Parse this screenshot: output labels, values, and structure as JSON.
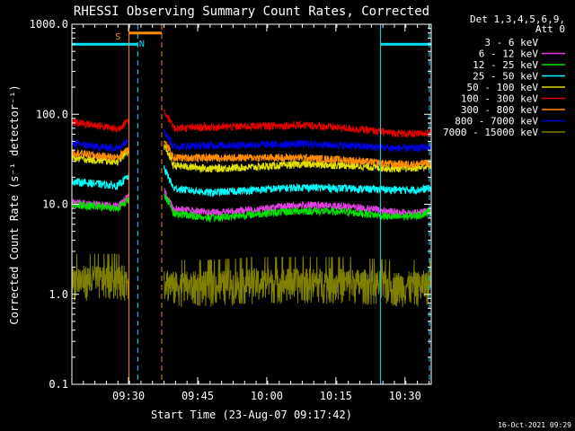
{
  "chart_data": {
    "type": "line",
    "title": "RHESSI Observing Summary Count Rates, Corrected",
    "xlabel": "Start Time (23-Aug-07 09:17:42)",
    "ylabel": "Corrected Count Rate (s⁻¹ detector⁻¹)",
    "y_scale": "log",
    "ylim": [
      0.1,
      1000
    ],
    "xlim_minutes": [
      0,
      78
    ],
    "x_ticks": [
      {
        "m": 12.3,
        "label": "09:30"
      },
      {
        "m": 27.3,
        "label": "09:45"
      },
      {
        "m": 42.3,
        "label": "10:00"
      },
      {
        "m": 57.3,
        "label": "10:15"
      },
      {
        "m": 72.3,
        "label": "10:30"
      },
      {
        "m": 87.3,
        "label": "10:45"
      }
    ],
    "y_ticks": [
      {
        "v": 0.1,
        "label": "0.1"
      },
      {
        "v": 1,
        "label": "1.0"
      },
      {
        "v": 10,
        "label": "10.0"
      },
      {
        "v": 100,
        "label": "100.0"
      },
      {
        "v": 1000,
        "label": "1000.0"
      }
    ],
    "legend_header": [
      "Det 1,3,4,5,6,9,",
      "Att 0"
    ],
    "gap_start_m": 12.4,
    "gap_end_m": 20.0,
    "series": [
      {
        "name": "3 - 6 keV",
        "color": "#000000",
        "x": [
          0,
          5,
          10,
          12,
          20,
          22,
          30,
          40,
          50,
          60,
          70,
          75,
          80,
          85,
          90
        ],
        "y": [
          2.5,
          2.5,
          2.8,
          3.5,
          4.0,
          2.8,
          2.3,
          2.5,
          2.5,
          2.6,
          2.2,
          2.2,
          2.6,
          3.2,
          3.6
        ]
      },
      {
        "name": "6 - 12 keV",
        "color": "#e040e0",
        "x": [
          0,
          5,
          10,
          12,
          20,
          22,
          30,
          40,
          50,
          60,
          70,
          75,
          80,
          85,
          90
        ],
        "y": [
          10.5,
          10,
          9.5,
          12,
          14,
          9,
          8.0,
          8.8,
          9.8,
          9.5,
          8.2,
          8.0,
          8.8,
          11,
          12.5
        ]
      },
      {
        "name": "12 - 25 keV",
        "color": "#00e000",
        "x": [
          0,
          5,
          10,
          12,
          20,
          22,
          30,
          40,
          50,
          60,
          70,
          75,
          80,
          85,
          90
        ],
        "y": [
          10,
          9.5,
          9,
          11,
          13,
          8,
          7.0,
          7.8,
          8.5,
          8.2,
          7.2,
          7.5,
          9.0,
          12,
          14
        ]
      },
      {
        "name": "25 - 50 keV",
        "color": "#00ffff",
        "x": [
          0,
          5,
          10,
          12,
          20,
          22,
          30,
          40,
          50,
          60,
          70,
          75,
          80,
          85,
          90
        ],
        "y": [
          18,
          17,
          16,
          20,
          25,
          15,
          13.5,
          14.5,
          15.5,
          15,
          14.5,
          14.5,
          15.5,
          18,
          21
        ]
      },
      {
        "name": "50 - 100 keV",
        "color": "#e0e000",
        "x": [
          0,
          5,
          10,
          12,
          20,
          22,
          30,
          40,
          50,
          60,
          70,
          75,
          80,
          85,
          90
        ],
        "y": [
          33,
          31,
          30,
          38,
          45,
          27,
          25,
          26,
          28,
          27,
          25,
          25.5,
          27,
          32,
          36
        ]
      },
      {
        "name": "100 - 300 keV",
        "color": "#e00000",
        "x": [
          0,
          5,
          10,
          12,
          20,
          22,
          30,
          40,
          50,
          60,
          70,
          75,
          80,
          85,
          90
        ],
        "y": [
          82,
          76,
          68,
          85,
          110,
          70,
          72,
          74,
          76,
          70,
          62,
          60,
          64,
          72,
          80
        ]
      },
      {
        "name": "300 - 800 keV",
        "color": "#ff8c00",
        "x": [
          0,
          5,
          10,
          12,
          20,
          22,
          30,
          40,
          50,
          60,
          70,
          75,
          80,
          85,
          90
        ],
        "y": [
          38,
          35,
          33,
          42,
          50,
          33,
          33,
          33,
          33,
          31,
          28,
          28,
          30,
          35,
          40
        ]
      },
      {
        "name": "800 - 7000 keV",
        "color": "#0000e0",
        "x": [
          0,
          5,
          10,
          12,
          20,
          22,
          30,
          40,
          50,
          60,
          70,
          75,
          80,
          85,
          90
        ],
        "y": [
          48,
          44,
          42,
          52,
          65,
          44,
          45,
          46,
          47,
          45,
          42,
          42,
          45,
          50,
          54
        ]
      },
      {
        "name": "7000 - 15000 keV",
        "color": "#808000",
        "x": [
          0,
          5,
          10,
          12,
          20,
          22,
          30,
          40,
          50,
          60,
          70,
          75,
          80,
          85,
          90
        ],
        "y": [
          1.4,
          1.4,
          1.4,
          1.4,
          1.4,
          1.2,
          1.2,
          1.3,
          1.3,
          1.3,
          1.2,
          1.2,
          1.3,
          1.4,
          1.6
        ]
      }
    ],
    "night_bars": [
      {
        "x0": 0,
        "x1": 14.3,
        "y": 600,
        "color": "#00e0ff"
      },
      {
        "x0": 67.0,
        "x1": 78,
        "y": 600,
        "color": "#00e0ff"
      }
    ],
    "saa_bar": {
      "x0": 12.4,
      "x1": 19.5,
      "y": 800,
      "color": "#ff8c00"
    },
    "flag_labels": [
      {
        "label": "S",
        "m": 10.0,
        "color": "#ff8c00"
      },
      {
        "label": "N",
        "m": 15.2,
        "color": "#00e0ff"
      }
    ],
    "vlines": [
      {
        "m": 0,
        "color": "#00e0ff",
        "dash": false
      },
      {
        "m": 14.3,
        "color": "#00e0ff",
        "dash": true
      },
      {
        "m": 12.4,
        "color": "#ff8c00",
        "dash": false
      },
      {
        "m": 19.5,
        "color": "#ff8c00",
        "dash": true
      },
      {
        "m": 67.0,
        "color": "#00e0ff",
        "dash": false
      },
      {
        "m": 77.6,
        "color": "#00e0ff",
        "dash": true
      }
    ]
  },
  "footer": {
    "timestamp": "16-Oct-2021 09:29"
  }
}
